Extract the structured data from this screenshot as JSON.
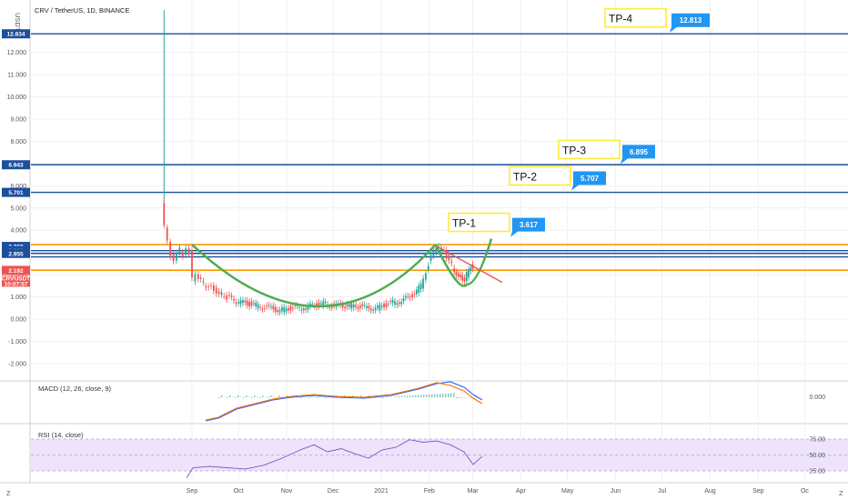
{
  "header": {
    "title": "CRV / TetherUS, 1D, BINANCE",
    "currency": "USDT"
  },
  "colors": {
    "up": "#26a69a",
    "down": "#ef5350",
    "blue": "#1c4f9c",
    "orange": "#ff9800",
    "green": "#4caf50",
    "callout": "#2196f3",
    "tp_border": "#ffeb3b",
    "macd": "#2962ff",
    "signal": "#ff6d00",
    "rsi": "#7e57c2"
  },
  "chart_data": {
    "type": "line",
    "title": "CRV / TetherUS, 1D, BINANCE",
    "yaxis": {
      "ticks": [
        "-2.000",
        "-1.000",
        "0.000",
        "1.000",
        "2.000",
        "3.000",
        "4.000",
        "5.000",
        "6.000",
        "7.000",
        "8.000",
        "9.000",
        "10.000",
        "11.000",
        "12.000"
      ]
    },
    "xaxis": {
      "ticks": [
        "Sep",
        "Oct",
        "Nov",
        "Dec",
        "2021",
        "Feb",
        "Mar",
        "Apr",
        "May",
        "Jun",
        "Jul",
        "Aug",
        "Sep",
        "Oc"
      ]
    },
    "price_badges": [
      {
        "text": "12.834",
        "y": 12.834,
        "color": "#1c4f9c"
      },
      {
        "text": "6.943",
        "y": 6.943,
        "color": "#1c4f9c"
      },
      {
        "text": "5.701",
        "y": 5.701,
        "color": "#1c4f9c"
      },
      {
        "text": "3.269",
        "y": 3.269,
        "color": "#1c4f9c"
      },
      {
        "text": "3.080",
        "y": 3.08,
        "color": "#1c4f9c"
      },
      {
        "text": "2.955",
        "y": 2.955,
        "color": "#1c4f9c"
      },
      {
        "text": "2.192",
        "y": 2.192,
        "color": "#ef5350"
      }
    ],
    "symbol_badge": {
      "text": "CRVUSDT",
      "countdown": "10:07:57"
    },
    "horizontal_levels": [
      {
        "y": 12.834,
        "color": "#1c4f9c"
      },
      {
        "y": 6.943,
        "color": "#1c4f9c"
      },
      {
        "y": 5.701,
        "color": "#1c4f9c"
      },
      {
        "y": 3.35,
        "color": "#ff9800"
      },
      {
        "y": 3.08,
        "color": "#1c4f9c"
      },
      {
        "y": 2.955,
        "color": "#1c4f9c"
      },
      {
        "y": 2.8,
        "color": "#1c4f9c"
      },
      {
        "y": 2.2,
        "color": "#ff9800"
      }
    ],
    "targets": [
      {
        "label": "TP-1",
        "value": "3.617",
        "y": 3.617
      },
      {
        "label": "TP-2",
        "value": "5.707",
        "y": 5.707
      },
      {
        "label": "TP-3",
        "value": "6.895",
        "y": 6.895
      },
      {
        "label": "TP-4",
        "value": "12.813",
        "y": 12.813
      }
    ],
    "price_series": {
      "x": [
        "2020-08-14",
        "2020-08-16",
        "2020-08-18",
        "2020-08-20",
        "2020-08-22",
        "2020-08-24",
        "2020-08-26",
        "2020-08-28",
        "2020-08-30",
        "2020-09-01",
        "2020-09-03",
        "2020-09-05",
        "2020-09-10",
        "2020-09-15",
        "2020-09-20",
        "2020-09-25",
        "2020-10-01",
        "2020-10-08",
        "2020-10-15",
        "2020-10-22",
        "2020-10-29",
        "2020-11-05",
        "2020-11-12",
        "2020-11-19",
        "2020-11-26",
        "2020-12-03",
        "2020-12-10",
        "2020-12-17",
        "2020-12-24",
        "2020-12-31",
        "2021-01-07",
        "2021-01-14",
        "2021-01-21",
        "2021-01-28",
        "2021-02-02",
        "2021-02-07",
        "2021-02-12",
        "2021-02-17",
        "2021-02-21",
        "2021-02-25",
        "2021-03-01",
        "2021-03-03"
      ],
      "close": [
        5.2,
        4.1,
        3.5,
        2.9,
        2.7,
        2.9,
        3.1,
        2.8,
        3.3,
        3.0,
        1.8,
        1.9,
        1.6,
        1.4,
        1.2,
        1.0,
        0.8,
        0.7,
        0.6,
        0.5,
        0.4,
        0.5,
        0.5,
        0.6,
        0.7,
        0.6,
        0.6,
        0.6,
        0.5,
        0.5,
        0.7,
        0.8,
        1.0,
        1.5,
        2.5,
        3.3,
        3.0,
        2.4,
        1.9,
        1.8,
        2.4,
        2.2
      ]
    },
    "cup_handle": {
      "cup_start": "2020-09-01",
      "cup_bottom": "2020-11-25",
      "cup_end": "2021-02-05",
      "handle_low": 1.55,
      "breakout": "2021-03-13"
    },
    "macd": {
      "label": "MACD (12, 26, close, 9)",
      "tick": "0.000"
    },
    "rsi": {
      "label": "RSI (14, close)",
      "ticks": [
        "75.00",
        "50.00",
        "25.00"
      ]
    }
  }
}
